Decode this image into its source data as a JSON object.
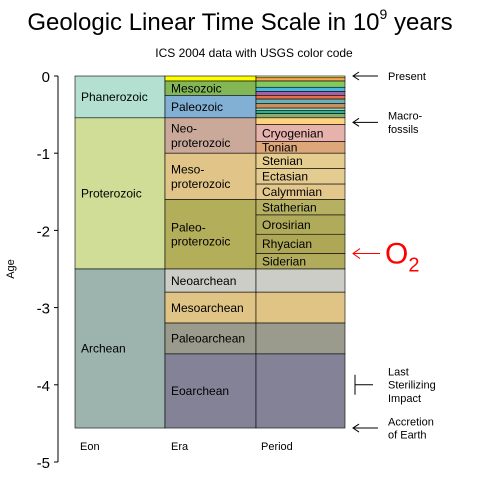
{
  "title": {
    "main": "Geologic Linear Time Scale in 10",
    "exponent": "9",
    "suffix": " years"
  },
  "subtitle": "ICS 2004 data with USGS color code",
  "axis": {
    "label": "Age",
    "range": [
      0,
      -5
    ],
    "ticks": [
      {
        "value": 0,
        "label": "0"
      },
      {
        "value": -1,
        "label": "-1"
      },
      {
        "value": -2,
        "label": "-2"
      },
      {
        "value": -3,
        "label": "-3"
      },
      {
        "value": -4,
        "label": "-4"
      },
      {
        "value": -5,
        "label": "-5"
      }
    ]
  },
  "columns": {
    "eon": "Eon",
    "era": "Era",
    "period": "Period"
  },
  "eons": [
    {
      "name": "Phanerozoic",
      "start": 0,
      "end": -0.542,
      "color": "#b3e0d1"
    },
    {
      "name": "Proterozoic",
      "start": -0.542,
      "end": -2.5,
      "color": "#cfdd97"
    },
    {
      "name": "Archean",
      "start": -2.5,
      "end": -4.56,
      "color": "#9cb4ad"
    }
  ],
  "eras": [
    {
      "name": "",
      "start": 0,
      "end": -0.065,
      "color": "#fefe00"
    },
    {
      "name": "Mesozoic",
      "start": -0.065,
      "end": -0.251,
      "color": "#83b756"
    },
    {
      "name": "Paleozoic",
      "start": -0.251,
      "end": -0.542,
      "color": "#82b0d5"
    },
    {
      "name": "Neo-\nproterozoic",
      "start": -0.542,
      "end": -1.0,
      "color": "#cba99a"
    },
    {
      "name": "Meso-\nproterozoic",
      "start": -1.0,
      "end": -1.6,
      "color": "#e1c488"
    },
    {
      "name": "Paleo-\nproterozoic",
      "start": -1.6,
      "end": -2.5,
      "color": "#b3ae59"
    },
    {
      "name": "Neoarchean",
      "start": -2.5,
      "end": -2.8,
      "color": "#cdcdc8"
    },
    {
      "name": "Mesoarchean",
      "start": -2.8,
      "end": -3.2,
      "color": "#e0c485"
    },
    {
      "name": "Paleoarchean",
      "start": -3.2,
      "end": -3.6,
      "color": "#9b9b8d"
    },
    {
      "name": "Eoarchean",
      "start": -3.6,
      "end": -4.56,
      "color": "#848297"
    }
  ],
  "periods": [
    {
      "name": "",
      "start": 0,
      "end": -0.023,
      "color": "#fff06a"
    },
    {
      "name": "",
      "start": -0.023,
      "end": -0.065,
      "color": "#f8a657"
    },
    {
      "name": "",
      "start": -0.065,
      "end": -0.146,
      "color": "#82c95b"
    },
    {
      "name": "",
      "start": -0.146,
      "end": -0.2,
      "color": "#44b8e4"
    },
    {
      "name": "",
      "start": -0.2,
      "end": -0.251,
      "color": "#a064a6"
    },
    {
      "name": "",
      "start": -0.251,
      "end": -0.299,
      "color": "#e96e4a"
    },
    {
      "name": "",
      "start": -0.299,
      "end": -0.359,
      "color": "#6ab1b5"
    },
    {
      "name": "",
      "start": -0.359,
      "end": -0.416,
      "color": "#c99060"
    },
    {
      "name": "",
      "start": -0.416,
      "end": -0.444,
      "color": "#b3d9c5"
    },
    {
      "name": "",
      "start": -0.444,
      "end": -0.488,
      "color": "#2eb092"
    },
    {
      "name": "",
      "start": -0.488,
      "end": -0.542,
      "color": "#8dab6a"
    },
    {
      "name": "",
      "start": -0.542,
      "end": -0.63,
      "color": "#fdd380"
    },
    {
      "name": "Cryogenian",
      "start": -0.63,
      "end": -0.85,
      "color": "#e7b2ab"
    },
    {
      "name": "Tonian",
      "start": -0.85,
      "end": -1.0,
      "color": "#dda779"
    },
    {
      "name": "Stenian",
      "start": -1.0,
      "end": -1.2,
      "color": "#e5cc8f"
    },
    {
      "name": "Ectasian",
      "start": -1.2,
      "end": -1.4,
      "color": "#e4cb8f"
    },
    {
      "name": "Calymmian",
      "start": -1.4,
      "end": -1.6,
      "color": "#e3c78c"
    },
    {
      "name": "Statherian",
      "start": -1.6,
      "end": -1.8,
      "color": "#b5b062"
    },
    {
      "name": "Orosirian",
      "start": -1.8,
      "end": -2.05,
      "color": "#b0ab5a"
    },
    {
      "name": "Rhyacian",
      "start": -2.05,
      "end": -2.3,
      "color": "#aea856"
    },
    {
      "name": "Siderian",
      "start": -2.3,
      "end": -2.5,
      "color": "#b0ac5c"
    },
    {
      "name": "",
      "start": -2.5,
      "end": -2.8,
      "color": "#cdcdc8"
    },
    {
      "name": "",
      "start": -2.8,
      "end": -3.2,
      "color": "#e0c485"
    },
    {
      "name": "",
      "start": -3.2,
      "end": -3.6,
      "color": "#9b9b8d"
    },
    {
      "name": "",
      "start": -3.6,
      "end": -4.56,
      "color": "#848297"
    }
  ],
  "annotations": [
    {
      "text": "Present",
      "age": 0,
      "type": "arrow"
    },
    {
      "text": "Macro-\nfossils",
      "age": -0.6,
      "type": "arrow"
    },
    {
      "text": "Last\nSterilizing\nImpact",
      "age": -4.0,
      "type": "bracket"
    },
    {
      "text": "Accretion\nof Earth",
      "age": -4.56,
      "type": "arrow"
    }
  ],
  "oxygen": {
    "symbol": "O",
    "subscript": "2",
    "age": -2.3,
    "color": "#ff0000"
  }
}
